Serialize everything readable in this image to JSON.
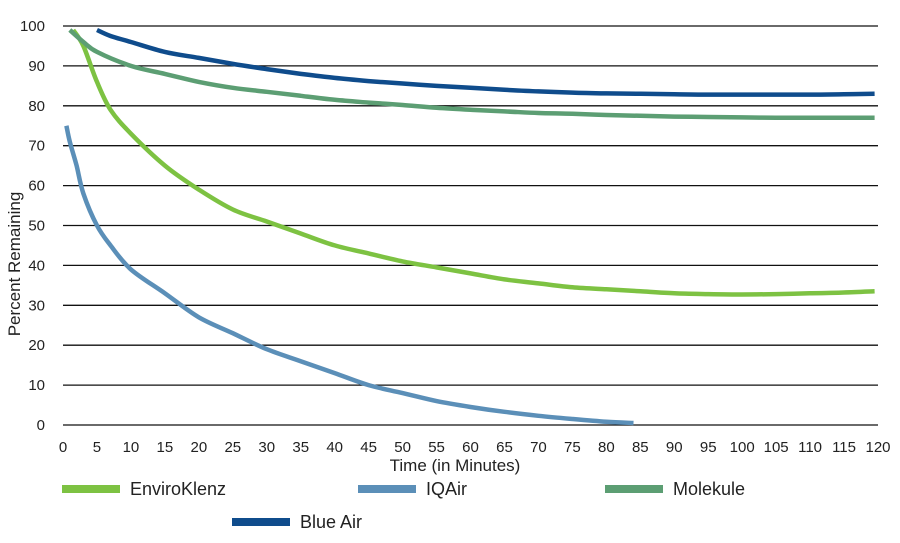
{
  "chart_data": {
    "type": "line",
    "title": "",
    "xlabel": "Time (in Minutes)",
    "ylabel": "Percent Remaining",
    "xlim": [
      0,
      120
    ],
    "ylim": [
      0,
      100
    ],
    "x_ticks": [
      "0",
      "5",
      "10",
      "15",
      "20",
      "25",
      "30",
      "35",
      "40",
      "45",
      "50",
      "55",
      "60",
      "65",
      "70",
      "75",
      "80",
      "85",
      "90",
      "95",
      "100",
      "105",
      "110",
      "115",
      "120"
    ],
    "y_ticks": [
      "0",
      "10",
      "20",
      "30",
      "40",
      "50",
      "60",
      "70",
      "80",
      "90",
      "100"
    ],
    "grid": "horizontal",
    "legend_position": "bottom",
    "series": [
      {
        "name": "EnviroKlenz",
        "color": "#7dc242",
        "points": [
          [
            1.5,
            99
          ],
          [
            3,
            95
          ],
          [
            5,
            86
          ],
          [
            7,
            79
          ],
          [
            10,
            73
          ],
          [
            15,
            65
          ],
          [
            20,
            59
          ],
          [
            25,
            54
          ],
          [
            30,
            51
          ],
          [
            35,
            48
          ],
          [
            40,
            45
          ],
          [
            45,
            43
          ],
          [
            50,
            41
          ],
          [
            55,
            39.5
          ],
          [
            60,
            38
          ],
          [
            65,
            36.5
          ],
          [
            70,
            35.5
          ],
          [
            75,
            34.5
          ],
          [
            80,
            34
          ],
          [
            85,
            33.5
          ],
          [
            90,
            33
          ],
          [
            95,
            32.8
          ],
          [
            100,
            32.7
          ],
          [
            105,
            32.8
          ],
          [
            110,
            33
          ],
          [
            115,
            33.2
          ],
          [
            119.5,
            33.5
          ]
        ]
      },
      {
        "name": "IQAir",
        "color": "#5b8fb8",
        "points": [
          [
            0.5,
            75
          ],
          [
            1,
            71
          ],
          [
            2,
            65
          ],
          [
            3,
            58
          ],
          [
            5,
            50
          ],
          [
            7,
            45
          ],
          [
            10,
            39
          ],
          [
            15,
            33
          ],
          [
            20,
            27
          ],
          [
            25,
            23
          ],
          [
            30,
            19
          ],
          [
            35,
            16
          ],
          [
            40,
            13
          ],
          [
            45,
            10
          ],
          [
            50,
            8
          ],
          [
            55,
            6
          ],
          [
            60,
            4.5
          ],
          [
            65,
            3.3
          ],
          [
            70,
            2.3
          ],
          [
            75,
            1.5
          ],
          [
            80,
            0.8
          ],
          [
            84,
            0.5
          ]
        ]
      },
      {
        "name": "Molekule",
        "color": "#5c9e73",
        "points": [
          [
            1,
            99
          ],
          [
            3,
            96
          ],
          [
            5,
            93.5
          ],
          [
            10,
            90
          ],
          [
            15,
            88
          ],
          [
            20,
            86
          ],
          [
            25,
            84.5
          ],
          [
            30,
            83.5
          ],
          [
            35,
            82.5
          ],
          [
            40,
            81.5
          ],
          [
            45,
            80.8
          ],
          [
            50,
            80.2
          ],
          [
            55,
            79.5
          ],
          [
            60,
            79
          ],
          [
            65,
            78.6
          ],
          [
            70,
            78.2
          ],
          [
            75,
            78
          ],
          [
            80,
            77.7
          ],
          [
            85,
            77.5
          ],
          [
            90,
            77.3
          ],
          [
            95,
            77.2
          ],
          [
            100,
            77.1
          ],
          [
            105,
            77
          ],
          [
            110,
            77
          ],
          [
            115,
            77
          ],
          [
            119.5,
            77
          ]
        ]
      },
      {
        "name": "Blue Air",
        "color": "#0f4c8c",
        "points": [
          [
            5,
            99
          ],
          [
            7,
            97.5
          ],
          [
            10,
            96
          ],
          [
            15,
            93.5
          ],
          [
            20,
            92
          ],
          [
            25,
            90.5
          ],
          [
            30,
            89.2
          ],
          [
            35,
            88
          ],
          [
            40,
            87
          ],
          [
            45,
            86.2
          ],
          [
            50,
            85.6
          ],
          [
            55,
            85
          ],
          [
            60,
            84.5
          ],
          [
            65,
            84
          ],
          [
            70,
            83.6
          ],
          [
            75,
            83.3
          ],
          [
            80,
            83.1
          ],
          [
            85,
            83
          ],
          [
            90,
            82.9
          ],
          [
            95,
            82.8
          ],
          [
            100,
            82.8
          ],
          [
            105,
            82.8
          ],
          [
            110,
            82.8
          ],
          [
            115,
            82.9
          ],
          [
            119.5,
            83
          ]
        ]
      }
    ]
  }
}
